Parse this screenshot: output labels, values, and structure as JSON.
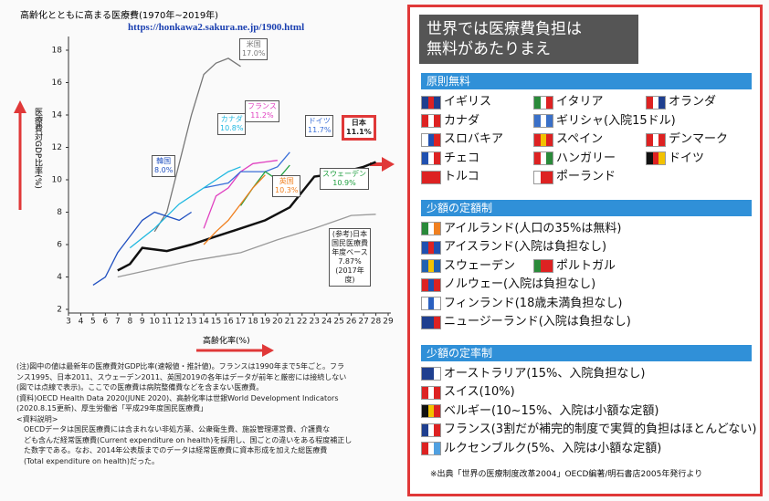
{
  "header": {
    "title": "高齢化とともに高まる医療費(1970年~2019年)",
    "url": "https://honkawa2.sakura.ne.jp/1900.html"
  },
  "chart_data": {
    "type": "line",
    "ylabel": "医療費対GDP比率(%)",
    "xlabel": "高齢化率(%)",
    "xlim": [
      3,
      29
    ],
    "xticks": [
      3,
      4,
      5,
      6,
      7,
      8,
      9,
      10,
      11,
      12,
      13,
      14,
      15,
      16,
      17,
      18,
      19,
      20,
      21,
      22,
      23,
      24,
      25,
      26,
      27,
      28,
      29
    ],
    "ylim": [
      2,
      18
    ],
    "yticks": [
      2,
      4,
      6,
      8,
      10,
      12,
      14,
      16,
      18
    ],
    "series": [
      {
        "name": "米国",
        "value_label": "17.0%",
        "color": "#777777",
        "x": [
          10,
          11,
          12,
          12.5,
          13,
          14,
          15,
          16,
          17
        ],
        "values": [
          6.8,
          8,
          11,
          12.5,
          14,
          16.5,
          17.2,
          17.5,
          17.0
        ]
      },
      {
        "name": "日本",
        "value_label": "11.1%",
        "color": "#111111",
        "x": [
          7,
          8,
          9,
          11,
          13,
          15,
          17,
          19,
          21,
          23,
          25,
          27,
          28
        ],
        "values": [
          4.4,
          4.8,
          5.8,
          5.6,
          6,
          6.5,
          7,
          7.5,
          8.3,
          10.2,
          10.4,
          10.8,
          11.1
        ]
      },
      {
        "name": "フランス",
        "value_label": "11.2%",
        "color": "#e040c0",
        "x": [
          14,
          15,
          16,
          17,
          18,
          19,
          20
        ],
        "values": [
          7,
          9,
          9.5,
          10.5,
          11,
          11.1,
          11.2
        ]
      },
      {
        "name": "ドイツ",
        "value_label": "11.7%",
        "color": "#3a6fd8",
        "x": [
          14,
          16,
          17,
          19,
          20,
          21
        ],
        "values": [
          9.5,
          9.8,
          10.5,
          10.5,
          10.8,
          11.7
        ]
      },
      {
        "name": "カナダ",
        "value_label": "10.8%",
        "color": "#20b8e0",
        "x": [
          8,
          10,
          12,
          13,
          15,
          16,
          17
        ],
        "values": [
          5.8,
          7,
          8.5,
          9,
          10,
          10.5,
          10.8
        ]
      },
      {
        "name": "韓国",
        "value_label": "8.0%",
        "color": "#2050c0",
        "x": [
          5,
          6,
          7,
          8,
          9,
          10,
          12,
          13
        ],
        "values": [
          3.5,
          4,
          5.5,
          6.5,
          7.5,
          8,
          7.5,
          8.0
        ]
      },
      {
        "name": "スウェーデン",
        "value_label": "10.9%",
        "color": "#20a040",
        "x": [
          17,
          18,
          19,
          20,
          21
        ],
        "values": [
          8.4,
          9.5,
          10.5,
          10,
          10.9
        ]
      },
      {
        "name": "英国",
        "value_label": "10.3%",
        "color": "#f08020",
        "x": [
          14,
          15,
          16,
          17,
          18,
          19
        ],
        "values": [
          6,
          6.8,
          7.5,
          8.5,
          9.5,
          10.3
        ]
      },
      {
        "name": "(参考)日本国民医療費年度ベース",
        "value_label": "7.87%",
        "period": "(2017年度)",
        "color": "#999999",
        "x": [
          7,
          13,
          17,
          20,
          23,
          26,
          28
        ],
        "values": [
          4,
          5,
          5.5,
          6.3,
          7,
          7.8,
          7.87
        ]
      }
    ]
  },
  "notes": [
    "(注)図中の値は最新年の医療費対GDP比率(速報値・推計値)。フランスは1990年まで5年ごと。フラ",
    "ンス1995、日本2011、スウェーデン2011、英国2019の各年はデータが前年と厳密には接続しない",
    "(図では点線で表示)。ここでの医療費は病院整備費などを含まない医療費。",
    "(資料)OECD Health Data 2020(JUNE 2020)、高齢化率は世銀World Development Indicators",
    "(2020.8.15更新)、厚生労働省「平成29年度国民医療費」",
    "<資料説明>",
    "OECDデータは国民医療費には含まれない非処方薬、公衆衛生費、施設管理運営費、介護費な",
    "ども含んだ経常医療費(Current expenditure on health)を採用し、国ごとの違いをある程度補正し",
    "た数字である。なお、2014年公表版までのデータは経常医療費に資本形成を加えた総医療費",
    "(Total expenditure on health)だった。"
  ],
  "panel": {
    "title": [
      "世界では医療費負担は",
      "無料があたりまえ"
    ],
    "sections": [
      {
        "heading": "原則無料",
        "rows": [
          [
            {
              "text": "イギリス",
              "flag": [
                "#1f3f8f",
                "#d22",
                "#1f3f8f"
              ]
            },
            {
              "text": "イタリア",
              "flag": [
                "#2a8a3a",
                "#ffffff",
                "#d22"
              ]
            },
            {
              "text": "オランダ",
              "flag": [
                "#d22",
                "#ffffff",
                "#1f3f8f"
              ]
            }
          ],
          [
            {
              "text": "カナダ",
              "flag": [
                "#d22",
                "#ffffff",
                "#d22"
              ]
            },
            {
              "text": "ギリシャ(入院15ドル)",
              "flag": [
                "#3a70c8",
                "#ffffff",
                "#3a70c8"
              ]
            }
          ],
          [
            {
              "text": "スロバキア",
              "flag": [
                "#ffffff",
                "#2050b0",
                "#d22"
              ]
            },
            {
              "text": "スペイン",
              "flag": [
                "#d22",
                "#f2c200",
                "#d22"
              ]
            },
            {
              "text": "デンマーク",
              "flag": [
                "#d22",
                "#ffffff",
                "#d22"
              ]
            }
          ],
          [
            {
              "text": "チェコ",
              "flag": [
                "#2050b0",
                "#ffffff",
                "#d22"
              ]
            },
            {
              "text": "ハンガリー",
              "flag": [
                "#d22",
                "#ffffff",
                "#2a8a3a"
              ]
            },
            {
              "text": "ドイツ",
              "flag": [
                "#111111",
                "#d22",
                "#f2c200"
              ]
            }
          ],
          [
            {
              "text": "トルコ",
              "flag": [
                "#d22",
                "#d22",
                "#d22"
              ]
            },
            {
              "text": "ポーランド",
              "flag": [
                "#ffffff",
                "#d22",
                "#d22"
              ]
            }
          ]
        ]
      },
      {
        "heading": "少額の定額制",
        "rows": [
          [
            {
              "text": "アイルランド(人口の35%は無料)",
              "flag": [
                "#2a8a3a",
                "#ffffff",
                "#f08020"
              ]
            }
          ],
          [
            {
              "text": "アイスランド(入院は負担なし)",
              "flag": [
                "#2050b0",
                "#d22",
                "#2050b0"
              ]
            }
          ],
          [
            {
              "text": "スウェーデン",
              "flag": [
                "#2060b0",
                "#f2c200",
                "#2060b0"
              ]
            },
            {
              "text": "ポルトガル",
              "flag": [
                "#2a8a3a",
                "#d22",
                "#d22"
              ]
            }
          ],
          [
            {
              "text": "ノルウェー(入院は負担なし)",
              "flag": [
                "#d22",
                "#2050b0",
                "#d22"
              ]
            }
          ],
          [
            {
              "text": "フィンランド(18歳未満負担なし)",
              "flag": [
                "#ffffff",
                "#2a60c0",
                "#ffffff"
              ]
            }
          ],
          [
            {
              "text": "ニュージーランド(入院は負担なし)",
              "flag": [
                "#1f3f8f",
                "#1f3f8f",
                "#d22"
              ]
            }
          ]
        ]
      },
      {
        "heading": "少額の定率制",
        "rows": [
          [
            {
              "text": "オーストラリア(15%、入院負担なし)",
              "flag": [
                "#1f3f8f",
                "#1f3f8f",
                "#ffffff"
              ]
            }
          ],
          [
            {
              "text": "スイス(10%)",
              "flag": [
                "#d22",
                "#ffffff",
                "#d22"
              ]
            }
          ],
          [
            {
              "text": "ベルギー(10~15%、入院は小額な定額)",
              "flag": [
                "#111111",
                "#f2c200",
                "#d22"
              ]
            }
          ],
          [
            {
              "text": "フランス(3割だが補完的制度で実質的負担はほとんどない)",
              "flag": [
                "#1f3f8f",
                "#ffffff",
                "#d22"
              ]
            }
          ],
          [
            {
              "text": "ルクセンブルク(5%、入院は小額な定額)",
              "flag": [
                "#d22",
                "#ffffff",
                "#50a0e0"
              ]
            }
          ]
        ]
      }
    ],
    "source": "※出典「世界の医療制度改革2004」OECD編著/明石書店2005年発行より"
  }
}
